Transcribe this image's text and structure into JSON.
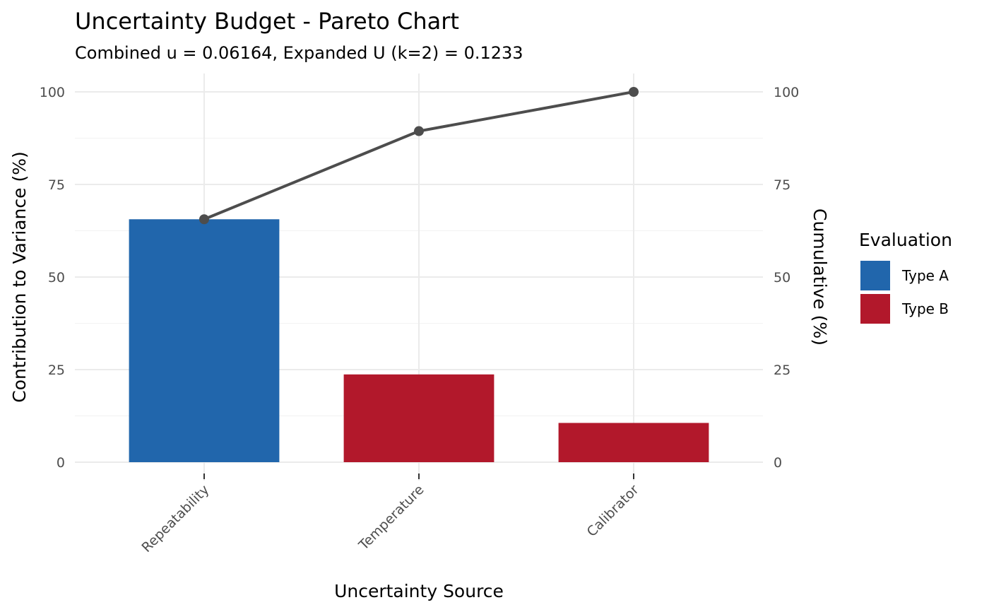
{
  "chart_data": {
    "type": "bar",
    "title": "Uncertainty Budget - Pareto Chart",
    "subtitle": "Combined u = 0.06164, Expanded U (k=2) = 0.1233",
    "xlabel": "Uncertainty Source",
    "ylabel": "Contribution to Variance (%)",
    "y2label": "Cumulative (%)",
    "categories": [
      "Repeatability",
      "Temperature",
      "Calibrator"
    ],
    "values": [
      65.6,
      23.7,
      10.6
    ],
    "bar_groups": [
      "Type A",
      "Type B",
      "Type B"
    ],
    "cumulative": [
      65.6,
      89.4,
      100
    ],
    "ylim": [
      0,
      100
    ],
    "y_ticks": [
      0,
      25,
      50,
      75,
      100
    ],
    "y2_ticks": [
      0,
      25,
      50,
      75,
      100
    ],
    "grid": true,
    "legend": {
      "title": "Evaluation",
      "position": "right",
      "entries": [
        {
          "name": "Type A",
          "color": "#2166ac"
        },
        {
          "name": "Type B",
          "color": "#b2182b"
        }
      ]
    },
    "line_color": "#4d4d4d"
  }
}
